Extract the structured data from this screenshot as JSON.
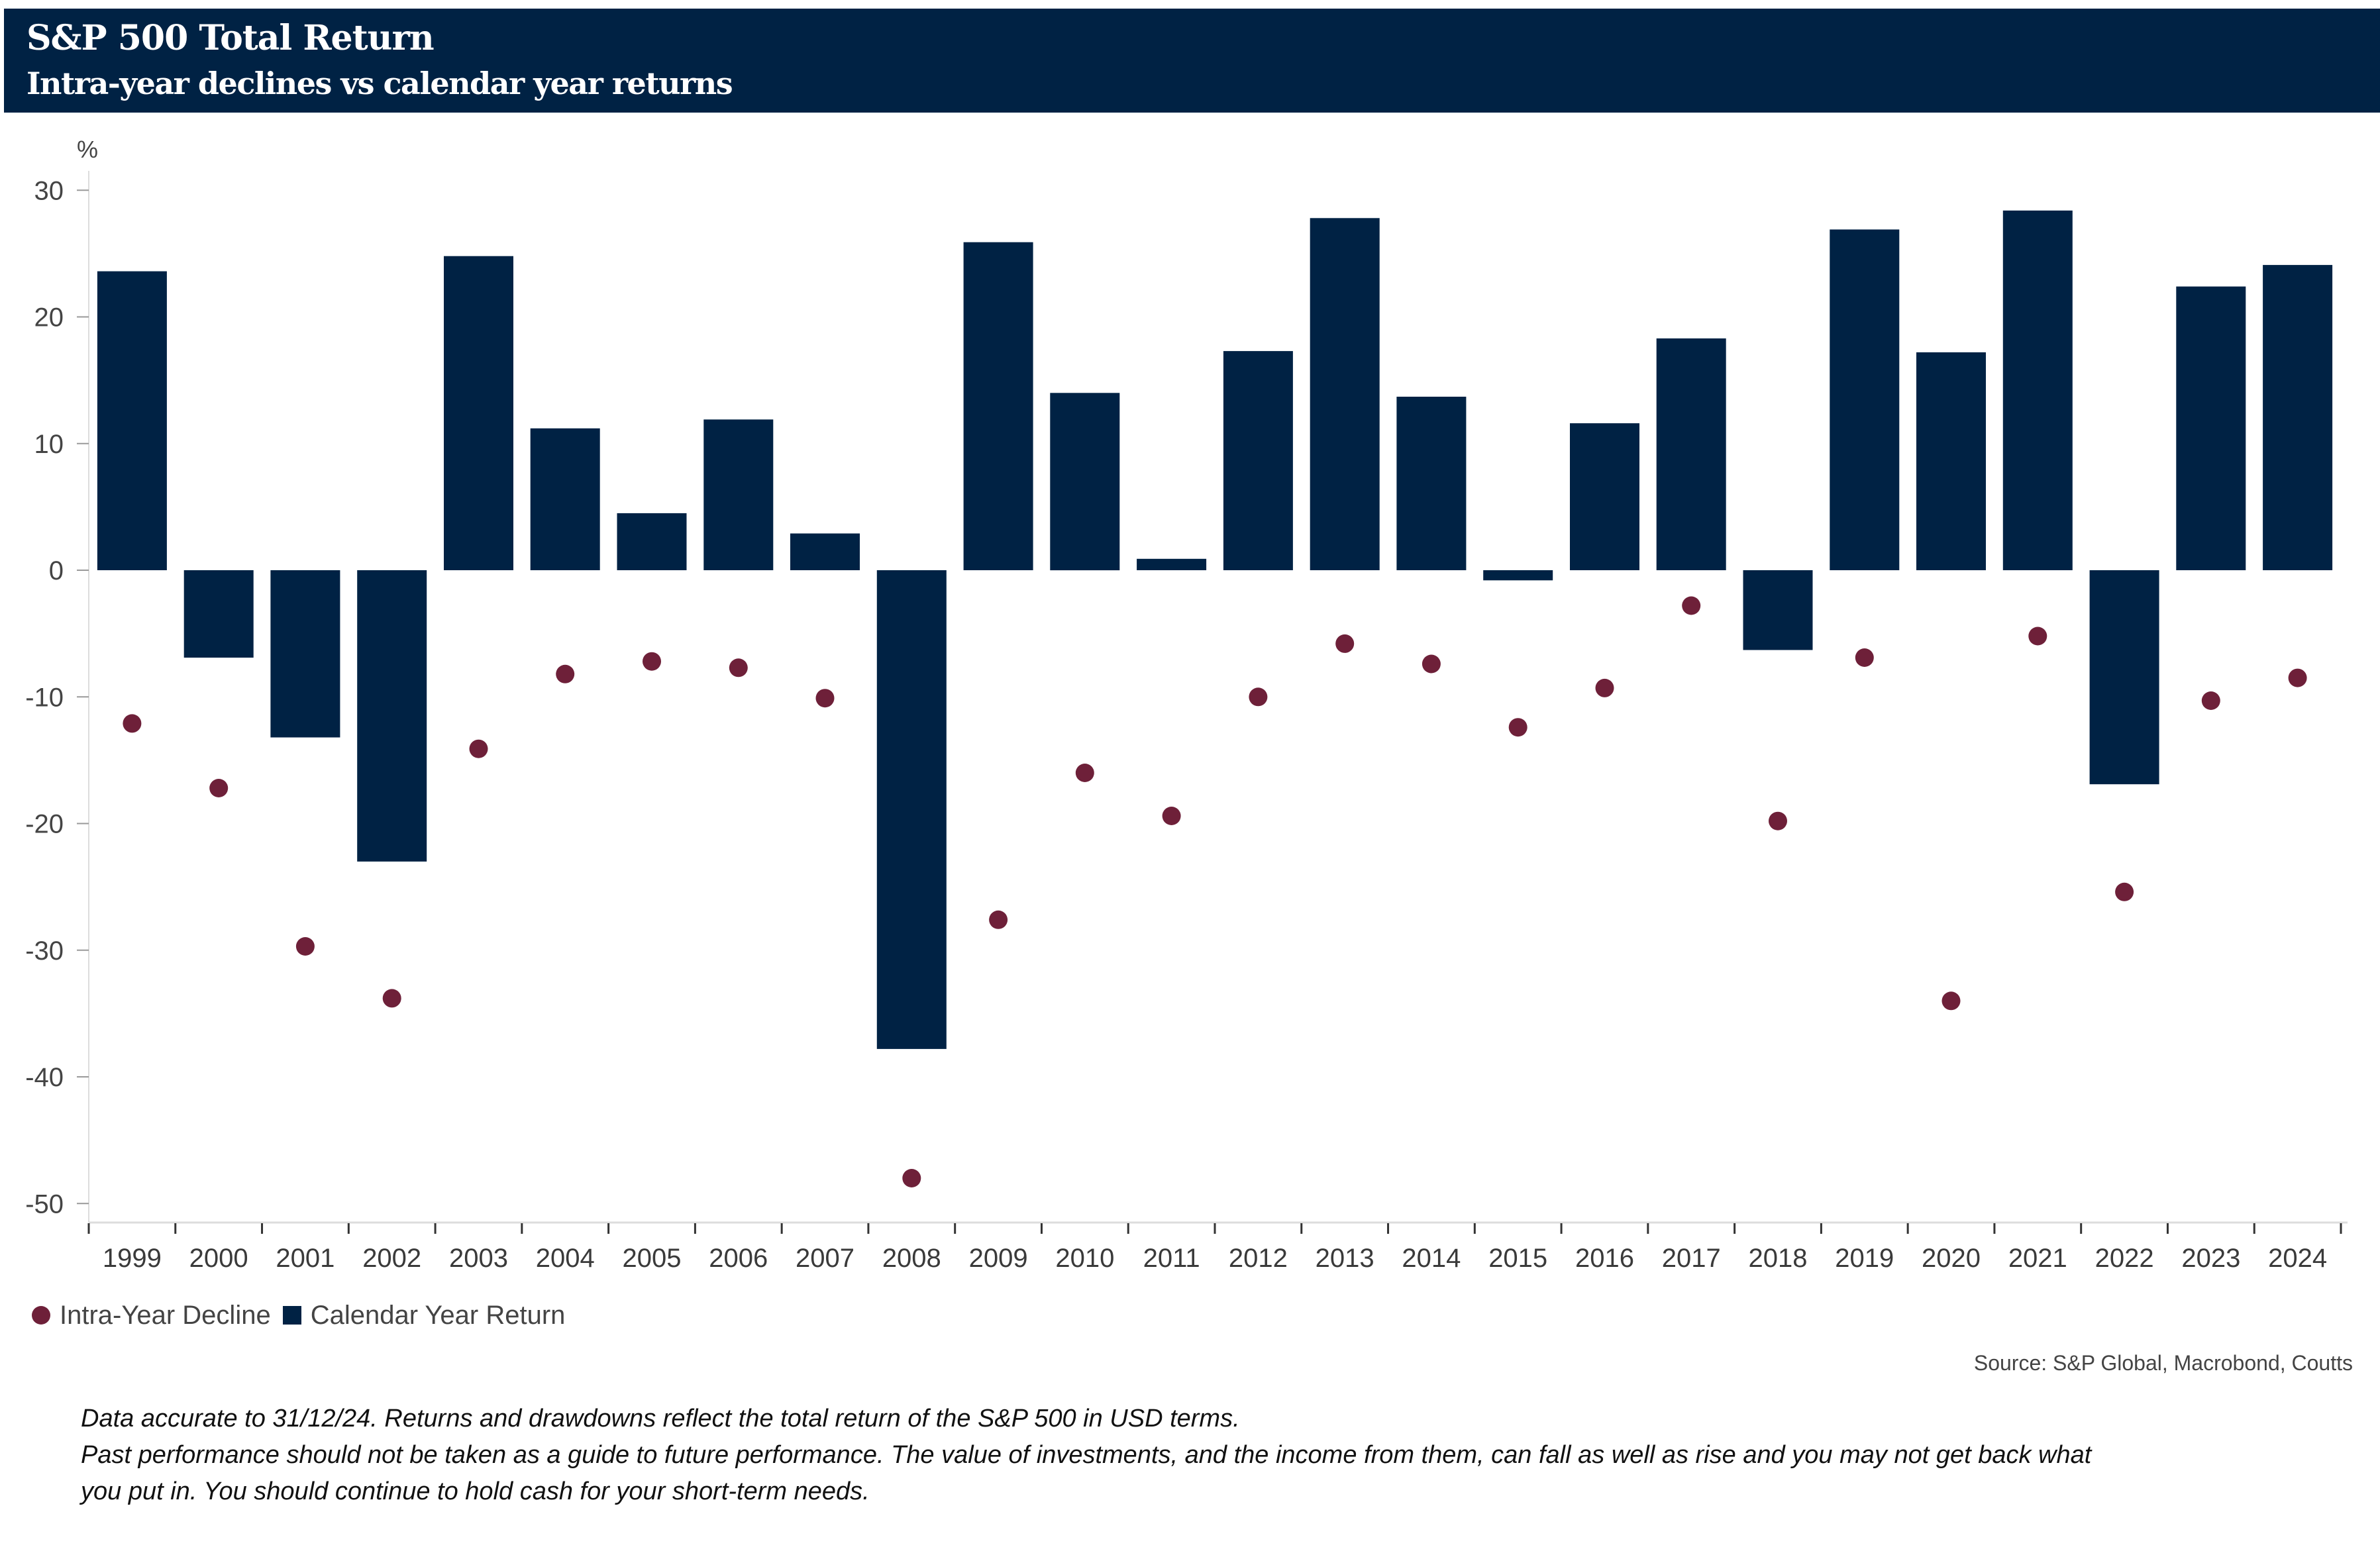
{
  "header": {
    "title": "S&P 500 Total Return",
    "subtitle": "Intra-year declines vs calendar year returns"
  },
  "colors": {
    "header_bg": "#002244",
    "bar": "#002244",
    "dot": "#6e2039",
    "axis": "#dddddd",
    "tick": "#333333",
    "text": "#444444"
  },
  "chart_data": {
    "type": "bar",
    "title": "S&P 500 Total Return",
    "subtitle": "Intra-year declines vs calendar year returns",
    "xlabel": "",
    "ylabel": "%",
    "ylim": [
      -52,
      32
    ],
    "yticks": [
      30,
      20,
      10,
      0,
      -10,
      -20,
      -30,
      -40,
      -50
    ],
    "ytick_labels": [
      "30",
      "20",
      "10",
      "0",
      "-10",
      "-20",
      "-30",
      "-40",
      "-50"
    ],
    "grid": false,
    "legend_position": "bottom-left",
    "categories": [
      "1999",
      "2000",
      "2001",
      "2002",
      "2003",
      "2004",
      "2005",
      "2006",
      "2007",
      "2008",
      "2009",
      "2010",
      "2011",
      "2012",
      "2013",
      "2014",
      "2015",
      "2016",
      "2017",
      "2018",
      "2019",
      "2020",
      "2021",
      "2022",
      "2023",
      "2024"
    ],
    "series": [
      {
        "name": "Intra-Year Decline",
        "type": "scatter",
        "values": [
          -12.1,
          -17.2,
          -29.7,
          -33.8,
          -14.1,
          -8.2,
          -7.2,
          -7.7,
          -10.1,
          -48.0,
          -27.6,
          -16.0,
          -19.4,
          -10.0,
          -5.8,
          -7.4,
          -12.4,
          -9.3,
          -2.8,
          -19.8,
          -6.9,
          -34.0,
          -5.2,
          -25.4,
          -10.3,
          -8.5
        ]
      },
      {
        "name": "Calendar Year Return",
        "type": "bar",
        "values": [
          23.6,
          -6.9,
          -13.2,
          -23.0,
          24.8,
          11.2,
          4.5,
          11.9,
          2.9,
          -37.8,
          25.9,
          14.0,
          0.9,
          17.3,
          27.8,
          13.7,
          -0.8,
          11.6,
          18.3,
          -6.3,
          26.9,
          17.2,
          28.4,
          -16.9,
          22.4,
          24.1
        ]
      }
    ]
  },
  "legend": {
    "items": [
      {
        "label": "Intra-Year Decline",
        "marker": "circle"
      },
      {
        "label": "Calendar Year Return",
        "marker": "square"
      }
    ]
  },
  "source": "Source: S&P Global, Macrobond, Coutts",
  "notes": [
    "Data accurate to 31/12/24. Returns and drawdowns reflect the total return of the S&P 500 in USD terms.",
    "Past performance should not be taken as a guide to future performance. The value of investments, and the income from them, can fall as well as rise and you may not get back what",
    "you put in. You should continue to hold cash for your short-term needs."
  ]
}
